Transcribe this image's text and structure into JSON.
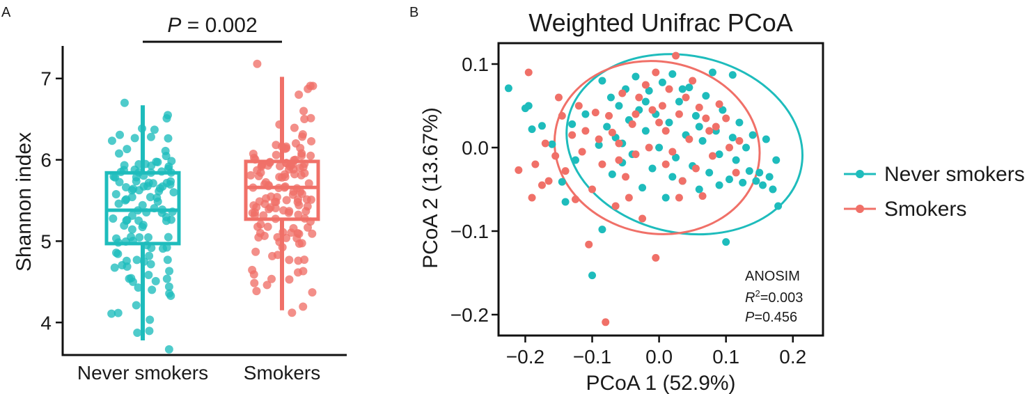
{
  "panel_labels": {
    "a": "A",
    "b": "B"
  },
  "colors": {
    "never": "#1ebcbc",
    "smokers": "#f07068",
    "axis": "#111111"
  },
  "chart_data": [
    {
      "type": "box",
      "title": "",
      "ylabel": "Shannon index",
      "xlabel": "",
      "ylim": [
        3.6,
        7.4
      ],
      "yticks": [
        4,
        5,
        6,
        7
      ],
      "categories": [
        "Never smokers",
        "Smokers"
      ],
      "significance": {
        "prefix": "P",
        "text": " = 0.002"
      },
      "boxes": [
        {
          "name": "Never smokers",
          "whisker_low": 3.78,
          "q1": 4.97,
          "median": 5.38,
          "q3": 5.84,
          "whisker_high": 6.67,
          "min": 3.67,
          "max": 6.7,
          "n": 120
        },
        {
          "name": "Smokers",
          "whisker_low": 4.15,
          "q1": 5.27,
          "median": 5.66,
          "q3": 5.98,
          "whisker_high": 7.02,
          "min": 4.12,
          "max": 7.18,
          "n": 140
        }
      ]
    },
    {
      "type": "scatter",
      "title": "Weighted Unifrac PCoA",
      "xlabel": "PCoA 1 (52.9%)",
      "ylabel": "PCoA 2 (13.67%)",
      "xlim": [
        -0.24,
        0.245
      ],
      "ylim": [
        -0.225,
        0.125
      ],
      "xticks": [
        -0.2,
        -0.1,
        0.0,
        0.1,
        0.2
      ],
      "xtick_labels": [
        "−0.2",
        "−0.1",
        "0.0",
        "0.1",
        "0.2"
      ],
      "yticks": [
        0.1,
        0.0,
        -0.1,
        -0.2
      ],
      "ytick_labels": [
        "0.1",
        "0.0",
        "−0.1",
        "−0.2"
      ],
      "legend": {
        "position": "right",
        "entries": [
          "Never smokers",
          "Smokers"
        ]
      },
      "annotation": {
        "line1": "ANOSIM",
        "r2_prefix": "R",
        "r2_sup": "2",
        "r2_value": "=0.003",
        "p_prefix": "P",
        "p_value": "=0.456"
      },
      "ellipses": [
        {
          "name": "Never smokers",
          "cx": 0.038,
          "cy": 0.004,
          "rx": 0.178,
          "ry": 0.106,
          "rotation_deg": 12
        },
        {
          "name": "Smokers",
          "cx": -0.003,
          "cy": 0.0,
          "rx": 0.154,
          "ry": 0.103,
          "rotation_deg": 10
        }
      ],
      "series": [
        {
          "name": "Never smokers",
          "points": [
            [
              -0.225,
              0.071
            ],
            [
              -0.2,
              0.047
            ],
            [
              -0.195,
              0.05
            ],
            [
              -0.19,
              0.022
            ],
            [
              -0.175,
              0.026
            ],
            [
              -0.16,
              0.004
            ],
            [
              -0.145,
              -0.041
            ],
            [
              -0.14,
              -0.065
            ],
            [
              -0.125,
              -0.015
            ],
            [
              -0.11,
              0.04
            ],
            [
              -0.1,
              -0.153
            ],
            [
              -0.09,
              0.003
            ],
            [
              -0.085,
              -0.098
            ],
            [
              -0.085,
              0.08
            ],
            [
              -0.078,
              0.025
            ],
            [
              -0.072,
              0.06
            ],
            [
              -0.07,
              -0.032
            ],
            [
              -0.065,
              0.012
            ],
            [
              -0.06,
              0.05
            ],
            [
              -0.055,
              -0.018
            ],
            [
              -0.05,
              0.07
            ],
            [
              -0.045,
              0.033
            ],
            [
              -0.04,
              -0.008
            ],
            [
              -0.035,
              0.085
            ],
            [
              -0.03,
              0.045
            ],
            [
              -0.025,
              -0.048
            ],
            [
              -0.02,
              0.02
            ],
            [
              -0.015,
              0.068
            ],
            [
              -0.01,
              -0.025
            ],
            [
              -0.005,
              0.04
            ],
            [
              0.0,
              0.0
            ],
            [
              0.005,
              0.078
            ],
            [
              0.01,
              -0.06
            ],
            [
              0.015,
              0.03
            ],
            [
              0.02,
              0.088
            ],
            [
              0.025,
              -0.012
            ],
            [
              0.03,
              0.055
            ],
            [
              0.035,
              -0.04
            ],
            [
              0.04,
              0.015
            ],
            [
              0.045,
              0.072
            ],
            [
              0.05,
              -0.022
            ],
            [
              0.055,
              0.038
            ],
            [
              0.06,
              -0.05
            ],
            [
              0.065,
              0.008
            ],
            [
              0.07,
              0.062
            ],
            [
              0.075,
              -0.03
            ],
            [
              0.08,
              0.09
            ],
            [
              0.085,
              0.02
            ],
            [
              0.09,
              -0.008
            ],
            [
              0.095,
              0.045
            ],
            [
              0.1,
              -0.113
            ],
            [
              0.105,
              -0.038
            ],
            [
              0.11,
              0.012
            ],
            [
              0.11,
              0.087
            ],
            [
              0.115,
              -0.015
            ],
            [
              0.12,
              0.03
            ],
            [
              0.125,
              -0.042
            ],
            [
              0.13,
              0.0
            ],
            [
              0.135,
              -0.028
            ],
            [
              0.14,
              0.015
            ],
            [
              0.145,
              -0.04
            ],
            [
              0.15,
              -0.03
            ],
            [
              0.155,
              -0.045
            ],
            [
              0.16,
              0.01
            ],
            [
              0.165,
              -0.035
            ],
            [
              0.17,
              -0.05
            ],
            [
              0.175,
              -0.015
            ],
            [
              0.178,
              -0.07
            ],
            [
              -0.13,
              0.028
            ],
            [
              0.02,
              -0.035
            ],
            [
              -0.055,
              0.005
            ],
            [
              0.06,
              0.025
            ],
            [
              0.035,
              0.07
            ],
            [
              -0.02,
              0.055
            ],
            [
              0.09,
              -0.045
            ]
          ]
        },
        {
          "name": "Smokers",
          "points": [
            [
              -0.21,
              -0.027
            ],
            [
              -0.195,
              0.09
            ],
            [
              -0.19,
              -0.06
            ],
            [
              -0.185,
              -0.02
            ],
            [
              -0.175,
              -0.045
            ],
            [
              -0.17,
              0.005
            ],
            [
              -0.165,
              -0.04
            ],
            [
              -0.155,
              -0.01
            ],
            [
              -0.15,
              0.06
            ],
            [
              -0.145,
              0.038
            ],
            [
              -0.14,
              -0.028
            ],
            [
              -0.13,
              0.015
            ],
            [
              -0.125,
              -0.062
            ],
            [
              -0.12,
              0.05
            ],
            [
              -0.115,
              -0.005
            ],
            [
              -0.11,
              0.02
            ],
            [
              -0.105,
              -0.116
            ],
            [
              -0.1,
              -0.05
            ],
            [
              -0.095,
              0.042
            ],
            [
              -0.09,
              0.01
            ],
            [
              -0.085,
              -0.02
            ],
            [
              -0.08,
              -0.209
            ],
            [
              -0.075,
              0.038
            ],
            [
              -0.07,
              0.018
            ],
            [
              -0.065,
              -0.07
            ],
            [
              -0.06,
              0.005
            ],
            [
              -0.055,
              0.065
            ],
            [
              -0.05,
              -0.035
            ],
            [
              -0.045,
              -0.06
            ],
            [
              -0.04,
              0.028
            ],
            [
              -0.035,
              -0.008
            ],
            [
              -0.03,
              0.06
            ],
            [
              -0.025,
              -0.085
            ],
            [
              -0.02,
              0.075
            ],
            [
              -0.015,
              0.0
            ],
            [
              -0.01,
              0.045
            ],
            [
              -0.005,
              -0.132
            ],
            [
              0.0,
              0.03
            ],
            [
              0.005,
              0.05
            ],
            [
              0.01,
              -0.02
            ],
            [
              0.015,
              0.07
            ],
            [
              0.02,
              -0.005
            ],
            [
              0.025,
              0.11
            ],
            [
              0.03,
              0.04
            ],
            [
              0.035,
              -0.04
            ],
            [
              0.04,
              0.06
            ],
            [
              0.045,
              0.01
            ],
            [
              0.05,
              0.08
            ],
            [
              0.055,
              -0.025
            ],
            [
              0.06,
              0.048
            ],
            [
              0.065,
              -0.058
            ],
            [
              0.07,
              0.035
            ],
            [
              0.075,
              0.02
            ],
            [
              0.08,
              -0.01
            ],
            [
              0.085,
              0.025
            ],
            [
              0.09,
              0.052
            ],
            [
              0.1,
              0.035
            ],
            [
              0.105,
              0.0
            ],
            [
              0.115,
              -0.03
            ],
            [
              0.12,
              0.008
            ],
            [
              -0.005,
              0.09
            ],
            [
              -0.06,
              -0.015
            ],
            [
              0.03,
              -0.06
            ],
            [
              -0.035,
              0.04
            ],
            [
              0.01,
              0.02
            ]
          ]
        }
      ]
    }
  ]
}
